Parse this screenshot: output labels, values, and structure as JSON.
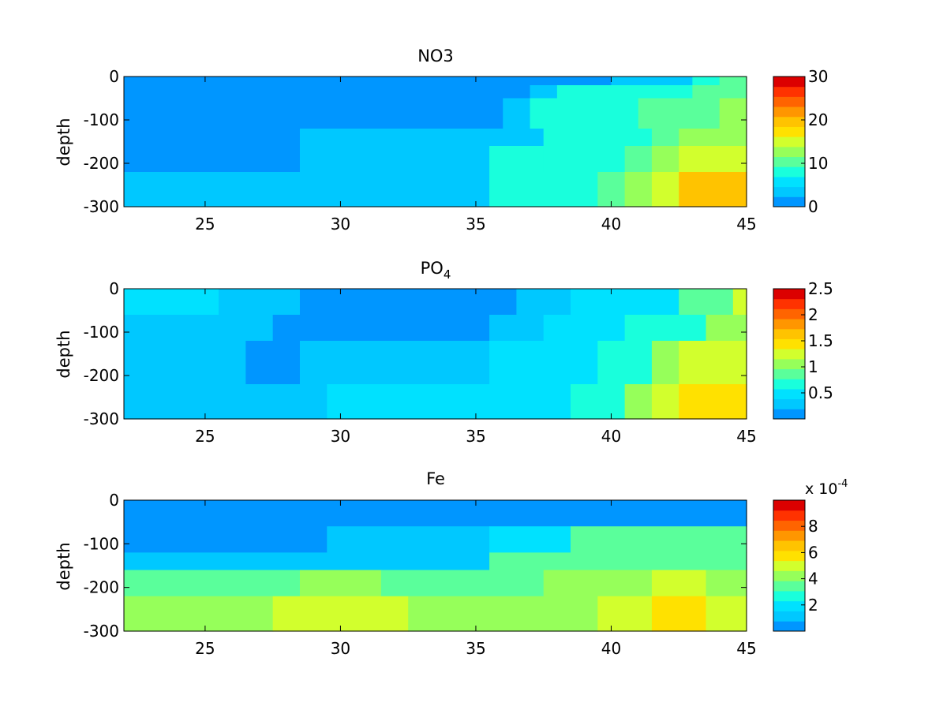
{
  "colormap": [
    "#0096FF",
    "#00C8FF",
    "#00E1FF",
    "#19FFDC",
    "#5AFF9B",
    "#96FF5A",
    "#D2FF2D",
    "#FFE100",
    "#FFC300",
    "#FF9600",
    "#FF6400",
    "#FF3200",
    "#DC0000"
  ],
  "chart_data": [
    {
      "type": "heatmap",
      "title": "NO3",
      "ylabel": "depth",
      "xlabel": "",
      "xlim": [
        22,
        45
      ],
      "ylim": [
        -300,
        0
      ],
      "xticks": [
        "25",
        "30",
        "35",
        "40",
        "45"
      ],
      "yticks": [
        "0",
        "-100",
        "-200",
        "-300"
      ],
      "colorbar": {
        "ticks": [
          "0",
          "10",
          "20",
          "30"
        ],
        "range": [
          0,
          30
        ],
        "exponent_label": ""
      },
      "cells": [
        {
          "x": [
            22,
            40
          ],
          "y": [
            -20,
            0
          ],
          "value": 1
        },
        {
          "x": [
            40,
            43
          ],
          "y": [
            -20,
            0
          ],
          "value": 4
        },
        {
          "x": [
            43,
            44
          ],
          "y": [
            -20,
            0
          ],
          "value": 7
        },
        {
          "x": [
            44,
            45
          ],
          "y": [
            -20,
            0
          ],
          "value": 10
        },
        {
          "x": [
            22,
            37
          ],
          "y": [
            -50,
            -20
          ],
          "value": 1
        },
        {
          "x": [
            37,
            38
          ],
          "y": [
            -50,
            -20
          ],
          "value": 4
        },
        {
          "x": [
            38,
            43
          ],
          "y": [
            -50,
            -20
          ],
          "value": 7
        },
        {
          "x": [
            43,
            45
          ],
          "y": [
            -50,
            -20
          ],
          "value": 10
        },
        {
          "x": [
            22,
            36
          ],
          "y": [
            -120,
            -50
          ],
          "value": 1
        },
        {
          "x": [
            36,
            37
          ],
          "y": [
            -120,
            -50
          ],
          "value": 4
        },
        {
          "x": [
            37,
            41
          ],
          "y": [
            -120,
            -50
          ],
          "value": 7
        },
        {
          "x": [
            41,
            44
          ],
          "y": [
            -120,
            -50
          ],
          "value": 10
        },
        {
          "x": [
            44,
            45
          ],
          "y": [
            -120,
            -50
          ],
          "value": 13
        },
        {
          "x": [
            22,
            28.5
          ],
          "y": [
            -160,
            -120
          ],
          "value": 1
        },
        {
          "x": [
            28.5,
            35.5
          ],
          "y": [
            -160,
            -120
          ],
          "value": 4
        },
        {
          "x": [
            35.5,
            37.5
          ],
          "y": [
            -160,
            -120
          ],
          "value": 4
        },
        {
          "x": [
            37.5,
            41.5
          ],
          "y": [
            -160,
            -120
          ],
          "value": 7
        },
        {
          "x": [
            41.5,
            42.5
          ],
          "y": [
            -160,
            -120
          ],
          "value": 10
        },
        {
          "x": [
            42.5,
            45
          ],
          "y": [
            -160,
            -120
          ],
          "value": 13
        },
        {
          "x": [
            22,
            28.5
          ],
          "y": [
            -220,
            -160
          ],
          "value": 1
        },
        {
          "x": [
            28.5,
            35.5
          ],
          "y": [
            -220,
            -160
          ],
          "value": 4
        },
        {
          "x": [
            35.5,
            37.5
          ],
          "y": [
            -220,
            -160
          ],
          "value": 7
        },
        {
          "x": [
            37.5,
            40.5
          ],
          "y": [
            -220,
            -160
          ],
          "value": 7
        },
        {
          "x": [
            40.5,
            41.5
          ],
          "y": [
            -220,
            -160
          ],
          "value": 10
        },
        {
          "x": [
            41.5,
            42.5
          ],
          "y": [
            -220,
            -160
          ],
          "value": 13
        },
        {
          "x": [
            42.5,
            45
          ],
          "y": [
            -220,
            -160
          ],
          "value": 16
        },
        {
          "x": [
            22,
            35.5
          ],
          "y": [
            -300,
            -220
          ],
          "value": 4
        },
        {
          "x": [
            35.5,
            39.5
          ],
          "y": [
            -300,
            -220
          ],
          "value": 7
        },
        {
          "x": [
            39.5,
            40.5
          ],
          "y": [
            -300,
            -220
          ],
          "value": 10
        },
        {
          "x": [
            40.5,
            41.5
          ],
          "y": [
            -300,
            -220
          ],
          "value": 13
        },
        {
          "x": [
            41.5,
            42.5
          ],
          "y": [
            -300,
            -220
          ],
          "value": 16
        },
        {
          "x": [
            42.5,
            45
          ],
          "y": [
            -300,
            -220
          ],
          "value": 19
        }
      ]
    },
    {
      "type": "heatmap",
      "title": "PO",
      "title_subscript": "4",
      "ylabel": "depth",
      "xlabel": "",
      "xlim": [
        22,
        45
      ],
      "ylim": [
        -300,
        0
      ],
      "xticks": [
        "25",
        "30",
        "35",
        "40",
        "45"
      ],
      "yticks": [
        "0",
        "-100",
        "-200",
        "-300"
      ],
      "colorbar": {
        "ticks": [
          "0.5",
          "1",
          "1.5",
          "2",
          "2.5"
        ],
        "range": [
          0,
          2.5
        ],
        "exponent_label": ""
      },
      "cells": [
        {
          "x": [
            22,
            25.5
          ],
          "y": [
            -60,
            0
          ],
          "value": 0.55
        },
        {
          "x": [
            25.5,
            28.5
          ],
          "y": [
            -60,
            0
          ],
          "value": 0.35
        },
        {
          "x": [
            28.5,
            36.5
          ],
          "y": [
            -60,
            0
          ],
          "value": 0.1
        },
        {
          "x": [
            36.5,
            38.5
          ],
          "y": [
            -60,
            0
          ],
          "value": 0.35
        },
        {
          "x": [
            38.5,
            42.5
          ],
          "y": [
            -60,
            0
          ],
          "value": 0.55
        },
        {
          "x": [
            42.5,
            44.5
          ],
          "y": [
            -60,
            0
          ],
          "value": 0.9
        },
        {
          "x": [
            44.5,
            45
          ],
          "y": [
            -60,
            0
          ],
          "value": 1.2
        },
        {
          "x": [
            22,
            27.5
          ],
          "y": [
            -120,
            -60
          ],
          "value": 0.35
        },
        {
          "x": [
            27.5,
            35.5
          ],
          "y": [
            -120,
            -60
          ],
          "value": 0.1
        },
        {
          "x": [
            35.5,
            37.5
          ],
          "y": [
            -120,
            -60
          ],
          "value": 0.35
        },
        {
          "x": [
            37.5,
            40.5
          ],
          "y": [
            -120,
            -60
          ],
          "value": 0.55
        },
        {
          "x": [
            40.5,
            43.5
          ],
          "y": [
            -120,
            -60
          ],
          "value": 0.75
        },
        {
          "x": [
            43.5,
            45
          ],
          "y": [
            -120,
            -60
          ],
          "value": 1.1
        },
        {
          "x": [
            22,
            26.5
          ],
          "y": [
            -220,
            -120
          ],
          "value": 0.35
        },
        {
          "x": [
            26.5,
            28.5
          ],
          "y": [
            -220,
            -120
          ],
          "value": 0.1
        },
        {
          "x": [
            28.5,
            35.5
          ],
          "y": [
            -220,
            -120
          ],
          "value": 0.35
        },
        {
          "x": [
            35.5,
            39.5
          ],
          "y": [
            -220,
            -120
          ],
          "value": 0.55
        },
        {
          "x": [
            39.5,
            41.5
          ],
          "y": [
            -220,
            -120
          ],
          "value": 0.75
        },
        {
          "x": [
            41.5,
            42.5
          ],
          "y": [
            -220,
            -120
          ],
          "value": 1.0
        },
        {
          "x": [
            42.5,
            45
          ],
          "y": [
            -220,
            -120
          ],
          "value": 1.3
        },
        {
          "x": [
            22,
            29.5
          ],
          "y": [
            -300,
            -220
          ],
          "value": 0.35
        },
        {
          "x": [
            29.5,
            38.5
          ],
          "y": [
            -300,
            -220
          ],
          "value": 0.55
        },
        {
          "x": [
            38.5,
            40.5
          ],
          "y": [
            -300,
            -220
          ],
          "value": 0.75
        },
        {
          "x": [
            40.5,
            41.5
          ],
          "y": [
            -300,
            -220
          ],
          "value": 1.0
        },
        {
          "x": [
            41.5,
            42.5
          ],
          "y": [
            -300,
            -220
          ],
          "value": 1.25
        },
        {
          "x": [
            42.5,
            45
          ],
          "y": [
            -300,
            -220
          ],
          "value": 1.45
        }
      ]
    },
    {
      "type": "heatmap",
      "title": "Fe",
      "ylabel": "depth",
      "xlabel": "",
      "xlim": [
        22,
        45
      ],
      "ylim": [
        -300,
        0
      ],
      "xticks": [
        "25",
        "30",
        "35",
        "40",
        "45"
      ],
      "yticks": [
        "0",
        "-100",
        "-200",
        "-300"
      ],
      "colorbar": {
        "ticks": [
          "2",
          "4",
          "6",
          "8"
        ],
        "range": [
          0,
          10
        ],
        "exponent_label": "x 10",
        "exponent": "-4"
      },
      "cells": [
        {
          "x": [
            22,
            45
          ],
          "y": [
            -60,
            0
          ],
          "value": 0.3
        },
        {
          "x": [
            22,
            29.5
          ],
          "y": [
            -120,
            -60
          ],
          "value": 0.3
        },
        {
          "x": [
            29.5,
            35.5
          ],
          "y": [
            -120,
            -60
          ],
          "value": 1.5
        },
        {
          "x": [
            35.5,
            38.5
          ],
          "y": [
            -120,
            -60
          ],
          "value": 2.3
        },
        {
          "x": [
            38.5,
            45
          ],
          "y": [
            -120,
            -60
          ],
          "value": 3.2
        },
        {
          "x": [
            22,
            35.5
          ],
          "y": [
            -160,
            -120
          ],
          "value": 1.5
        },
        {
          "x": [
            35.5,
            45
          ],
          "y": [
            -160,
            -120
          ],
          "value": 3.5
        },
        {
          "x": [
            22,
            28.5
          ],
          "y": [
            -220,
            -160
          ],
          "value": 3.5
        },
        {
          "x": [
            28.5,
            31.5
          ],
          "y": [
            -220,
            -160
          ],
          "value": 4.3
        },
        {
          "x": [
            31.5,
            37.5
          ],
          "y": [
            -220,
            -160
          ],
          "value": 3.5
        },
        {
          "x": [
            37.5,
            41.5
          ],
          "y": [
            -220,
            -160
          ],
          "value": 4.3
        },
        {
          "x": [
            41.5,
            43.5
          ],
          "y": [
            -220,
            -160
          ],
          "value": 5.0
        },
        {
          "x": [
            43.5,
            45
          ],
          "y": [
            -220,
            -160
          ],
          "value": 4.3
        },
        {
          "x": [
            22,
            27.5
          ],
          "y": [
            -300,
            -220
          ],
          "value": 4.3
        },
        {
          "x": [
            27.5,
            32.5
          ],
          "y": [
            -300,
            -220
          ],
          "value": 5.0
        },
        {
          "x": [
            32.5,
            39.5
          ],
          "y": [
            -300,
            -220
          ],
          "value": 4.3
        },
        {
          "x": [
            39.5,
            41.5
          ],
          "y": [
            -300,
            -220
          ],
          "value": 5.0
        },
        {
          "x": [
            41.5,
            43.5
          ],
          "y": [
            -300,
            -220
          ],
          "value": 5.7
        },
        {
          "x": [
            43.5,
            45
          ],
          "y": [
            -300,
            -220
          ],
          "value": 5.0
        }
      ]
    }
  ]
}
